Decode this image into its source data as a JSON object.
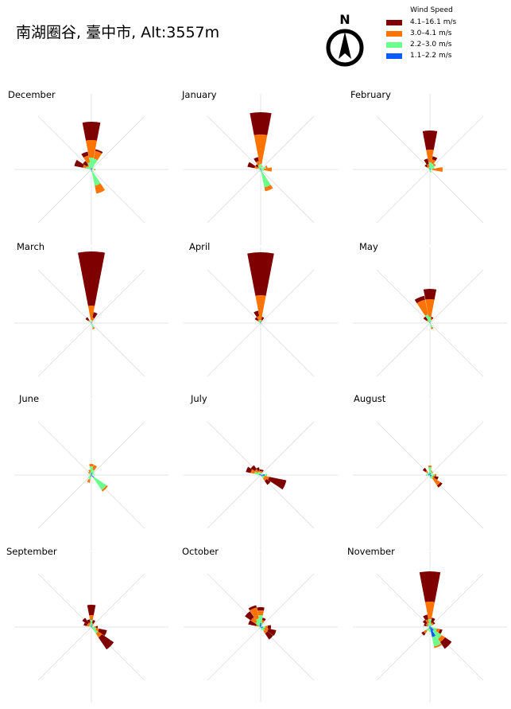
{
  "title": "南湖圈谷, 臺中市, Alt:3557m",
  "compass": {
    "label": "N",
    "icon": "north-arrow-icon"
  },
  "legend": {
    "title": "Wind Speed",
    "items": [
      {
        "label": "4.1–16.1 m/s",
        "color": "#7f0000"
      },
      {
        "label": "3.0–4.1 m/s",
        "color": "#ff7300"
      },
      {
        "label": "2.2–3.0 m/s",
        "color": "#6bff8c"
      },
      {
        "label": "1.1–2.2 m/s",
        "color": "#0a5cff"
      }
    ]
  },
  "chart_data": {
    "type": "polar-bar",
    "directions": [
      "N",
      "NNE",
      "NE",
      "ENE",
      "E",
      "ESE",
      "SE",
      "SSE",
      "S",
      "SSW",
      "SW",
      "WSW",
      "W",
      "WNW",
      "NW",
      "NNW"
    ],
    "bins": [
      "1.1–2.2 m/s",
      "2.2–3.0 m/s",
      "3.0–4.1 m/s",
      "4.1–16.1 m/s"
    ],
    "panels": [
      {
        "month": "December",
        "values": {
          "N": [
            0.02,
            0.13,
            0.22,
            0.23
          ],
          "NNE": [
            0.02,
            0.12,
            0.1,
            0.02
          ],
          "NE": [
            0.01,
            0.02,
            0,
            0
          ],
          "E": [
            0.01,
            0.03,
            0.01,
            0
          ],
          "SSE": [
            0.02,
            0.19,
            0.1,
            0
          ],
          "S": [
            0.01,
            0.02,
            0,
            0
          ],
          "W": [
            0.01,
            0.01,
            0,
            0
          ],
          "WNW": [
            0.01,
            0.06,
            0.04,
            0.11
          ],
          "NW": [
            0.01,
            0.04,
            0.02,
            0.06
          ],
          "NNW": [
            0.01,
            0.08,
            0.09,
            0.05
          ]
        }
      },
      {
        "month": "January",
        "values": {
          "N": [
            0.02,
            0.05,
            0.37,
            0.28
          ],
          "NNE": [
            0.01,
            0.03,
            0.01,
            0
          ],
          "ENE": [
            0.01,
            0.06,
            0.02,
            0
          ],
          "E": [
            0.01,
            0.03,
            0.1,
            0
          ],
          "ESE": [
            0.01,
            0.03,
            0,
            0
          ],
          "SSE": [
            0.02,
            0.21,
            0.05,
            0
          ],
          "S": [
            0.01,
            0.02,
            0,
            0
          ],
          "WNW": [
            0.01,
            0.03,
            0.04,
            0.09
          ],
          "NW": [
            0.01,
            0.02,
            0.02,
            0.03
          ],
          "NNW": [
            0.01,
            0.05,
            0.05,
            0.05
          ]
        }
      },
      {
        "month": "February",
        "values": {
          "N": [
            0.02,
            0.07,
            0.16,
            0.24
          ],
          "NNE": [
            0.01,
            0.07,
            0.05,
            0.04
          ],
          "NE": [
            0.01,
            0.06,
            0.02,
            0
          ],
          "ENE": [
            0.01,
            0.05,
            0,
            0
          ],
          "E": [
            0.01,
            0.02,
            0.13,
            0
          ],
          "SSE": [
            0.01,
            0.03,
            0,
            0
          ],
          "S": [
            0.01,
            0.02,
            0,
            0
          ],
          "NW": [
            0.01,
            0.02,
            0.02,
            0.03
          ],
          "NNW": [
            0.01,
            0.02,
            0.04,
            0.07
          ]
        }
      },
      {
        "month": "March",
        "values": {
          "N": [
            0.02,
            0.02,
            0.18,
            0.68
          ],
          "NNE": [
            0.01,
            0.02,
            0.04,
            0.07
          ],
          "SSE": [
            0.01,
            0.05,
            0.02,
            0
          ],
          "S": [
            0.01,
            0.01,
            0,
            0
          ],
          "NW": [
            0.01,
            0.02,
            0.02,
            0.04
          ]
        }
      },
      {
        "month": "April",
        "values": {
          "N": [
            0.02,
            0.02,
            0.31,
            0.54
          ],
          "NNE": [
            0.01,
            0.01,
            0.02,
            0.04
          ],
          "NNW": [
            0.01,
            0.03,
            0.05,
            0.07
          ],
          "NW": [
            0.01,
            0.02,
            0.02,
            0.04
          ],
          "S": [
            0.01,
            0.01,
            0,
            0
          ]
        }
      },
      {
        "month": "May",
        "values": {
          "N": [
            0.02,
            0.06,
            0.22,
            0.13
          ],
          "NNW": [
            0.01,
            0.1,
            0.19,
            0.05
          ],
          "NW": [
            0.01,
            0.02,
            0.02,
            0.05
          ],
          "NNE": [
            0.01,
            0.03,
            0.02,
            0.02
          ],
          "SSE": [
            0.01,
            0.05,
            0.02,
            0
          ]
        }
      },
      {
        "month": "June",
        "values": {
          "N": [
            0.03,
            0.08,
            0.03,
            0
          ],
          "NNE": [
            0.02,
            0.05,
            0.06,
            0
          ],
          "NE": [
            0.01,
            0.03,
            0,
            0
          ],
          "E": [
            0.01,
            0.03,
            0,
            0
          ],
          "SE": [
            0.04,
            0.19,
            0.02,
            0
          ],
          "SSW": [
            0.02,
            0.04,
            0.04,
            0
          ],
          "SW": [
            0.02,
            0.03,
            0,
            0
          ],
          "W": [
            0.01,
            0.02,
            0,
            0
          ],
          "NW": [
            0.01,
            0.02,
            0.02,
            0
          ],
          "NNW": [
            0.01,
            0.03,
            0.03,
            0
          ]
        }
      },
      {
        "month": "July",
        "values": {
          "N": [
            0.01,
            0.02,
            0.02,
            0.02
          ],
          "NNE": [
            0.01,
            0.02,
            0.02,
            0.02
          ],
          "E": [
            0.05,
            0.03,
            0,
            0
          ],
          "ESE": [
            0.02,
            0.03,
            0.06,
            0.22
          ],
          "SE": [
            0.02,
            0.03,
            0.04,
            0.06
          ],
          "WNW": [
            0.02,
            0.06,
            0.05,
            0.06
          ],
          "NW": [
            0.02,
            0.03,
            0.04,
            0.06
          ],
          "NNW": [
            0.01,
            0.03,
            0.02,
            0.04
          ],
          "W": [
            0.01,
            0.02,
            0,
            0
          ]
        }
      },
      {
        "month": "August",
        "values": {
          "N": [
            0.03,
            0.07,
            0.02,
            0
          ],
          "NNE": [
            0.02,
            0.03,
            0.01,
            0
          ],
          "NE": [
            0.01,
            0.03,
            0.01,
            0
          ],
          "E": [
            0.02,
            0.04,
            0.02,
            0
          ],
          "ESE": [
            0.02,
            0.02,
            0.02,
            0.05
          ],
          "SE": [
            0.02,
            0.03,
            0.11,
            0.03
          ],
          "SSE": [
            0.02,
            0.03,
            0,
            0
          ],
          "S": [
            0.01,
            0.02,
            0,
            0
          ],
          "W": [
            0.02,
            0.03,
            0,
            0
          ],
          "WNW": [
            0.02,
            0.02,
            0,
            0
          ],
          "NW": [
            0.02,
            0.02,
            0.03,
            0.04
          ],
          "NNW": [
            0.01,
            0.02,
            0,
            0
          ]
        }
      },
      {
        "month": "September",
        "values": {
          "N": [
            0.03,
            0.06,
            0.06,
            0.13
          ],
          "NNE": [
            0.01,
            0.02,
            0.02,
            0.04
          ],
          "NE": [
            0.01,
            0.01,
            0.01,
            0
          ],
          "E": [
            0.01,
            0.03,
            0.02,
            0.02
          ],
          "ESE": [
            0.01,
            0.05,
            0.04,
            0.1
          ],
          "SE": [
            0.02,
            0.08,
            0.06,
            0.18
          ],
          "NW": [
            0.01,
            0.02,
            0.03,
            0.08
          ],
          "NNW": [
            0.01,
            0.03,
            0.02,
            0.04
          ],
          "WNW": [
            0.01,
            0.02,
            0.03,
            0.04
          ]
        }
      },
      {
        "month": "October",
        "values": {
          "N": [
            0.05,
            0.1,
            0.06,
            0.04
          ],
          "NNW": [
            0.03,
            0.08,
            0.14,
            0.03
          ],
          "NW": [
            0.02,
            0.06,
            0.07,
            0.09
          ],
          "WNW": [
            0.01,
            0.02,
            0.03,
            0.1
          ],
          "NNE": [
            0.02,
            0.04,
            0.03,
            0.03
          ],
          "E": [
            0.03,
            0.03,
            0.03,
            0.04
          ],
          "ESE": [
            0.02,
            0.03,
            0.05,
            0.1
          ],
          "SE": [
            0.02,
            0.04,
            0.04,
            0.09
          ],
          "SSE": [
            0.01,
            0.03,
            0,
            0
          ],
          "SW": [
            0.01,
            0.02,
            0,
            0
          ]
        }
      },
      {
        "month": "November",
        "values": {
          "N": [
            0.02,
            0.08,
            0.22,
            0.38
          ],
          "NNW": [
            0.01,
            0.04,
            0.05,
            0.06
          ],
          "NW": [
            0.01,
            0.02,
            0.03,
            0.05
          ],
          "WNW": [
            0.01,
            0.02,
            0.02,
            0.03
          ],
          "NNE": [
            0.01,
            0.03,
            0.02,
            0.06
          ],
          "NE": [
            0.02,
            0.02,
            0.02,
            0.02
          ],
          "ESE": [
            0.03,
            0.06,
            0.04,
            0.03
          ],
          "SE": [
            0.06,
            0.12,
            0.05,
            0.1
          ],
          "SSE": [
            0.13,
            0.12,
            0.02,
            0
          ],
          "S": [
            0.02,
            0.04,
            0,
            0
          ],
          "SSW": [
            0.02,
            0.03,
            0,
            0
          ],
          "SW": [
            0.02,
            0.04,
            0.04,
            0.03
          ]
        }
      }
    ]
  }
}
